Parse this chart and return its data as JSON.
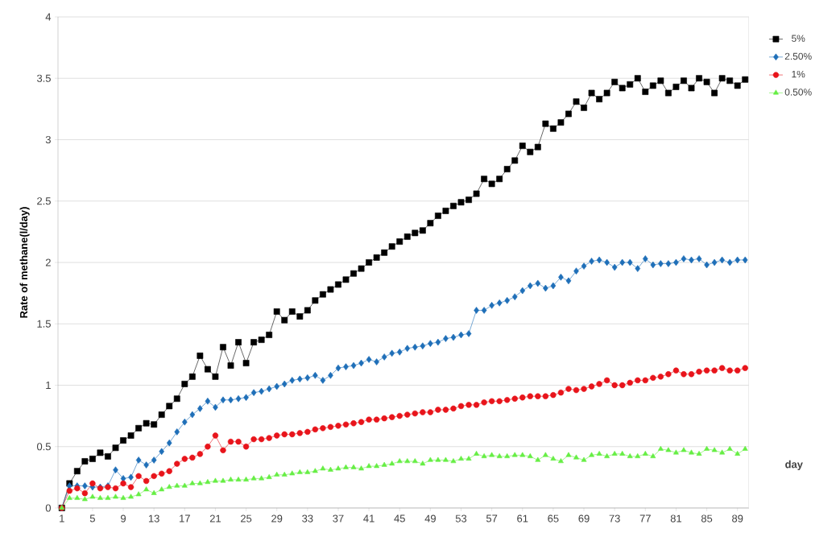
{
  "chart_data": {
    "type": "line",
    "ylabel": "Rate of methane(l/day)",
    "xlabel": "day",
    "categories": [
      "1",
      null,
      null,
      null,
      "5",
      null,
      null,
      null,
      "9",
      null,
      null,
      null,
      "13",
      null,
      null,
      null,
      "17",
      null,
      null,
      null,
      "21",
      null,
      null,
      null,
      "25",
      null,
      null,
      null,
      "29",
      null,
      null,
      null,
      "33",
      null,
      null,
      null,
      "37",
      null,
      null,
      null,
      "41",
      null,
      null,
      null,
      "45",
      null,
      null,
      null,
      "49",
      null,
      null,
      null,
      "53",
      null,
      null,
      null,
      "57",
      null,
      null,
      null,
      "61",
      null,
      null,
      null,
      "65",
      null,
      null,
      null,
      "69",
      null,
      null,
      null,
      "73",
      null,
      null,
      null,
      "77",
      null,
      null,
      null,
      "81",
      null,
      null,
      null,
      "85",
      null,
      null,
      null,
      "89",
      null
    ],
    "ylim": [
      0,
      4
    ],
    "yticks": [
      0,
      0.5,
      1,
      1.5,
      2,
      2.5,
      3,
      3.5,
      4
    ],
    "grid": "y",
    "legend": "right",
    "line_style": "solid",
    "series": [
      {
        "name": "5%",
        "color": "#000000",
        "marker": "square",
        "values": [
          0,
          0.2,
          0.3,
          0.38,
          0.4,
          0.45,
          0.42,
          0.49,
          0.55,
          0.59,
          0.65,
          0.69,
          0.68,
          0.76,
          0.83,
          0.89,
          1.01,
          1.07,
          1.24,
          1.13,
          1.07,
          1.31,
          1.16,
          1.35,
          1.18,
          1.35,
          1.37,
          1.41,
          1.6,
          1.53,
          1.6,
          1.56,
          1.61,
          1.69,
          1.74,
          1.78,
          1.82,
          1.86,
          1.91,
          1.95,
          2.0,
          2.04,
          2.08,
          2.13,
          2.17,
          2.21,
          2.24,
          2.26,
          2.32,
          2.38,
          2.42,
          2.46,
          2.49,
          2.51,
          2.56,
          2.68,
          2.64,
          2.68,
          2.76,
          2.83,
          2.95,
          2.9,
          2.94,
          3.13,
          3.09,
          3.14,
          3.21,
          3.31,
          3.26,
          3.38,
          3.33,
          3.38,
          3.47,
          3.42,
          3.45,
          3.5,
          3.39,
          3.44,
          3.48,
          3.38,
          3.43,
          3.48,
          3.42,
          3.5,
          3.47,
          3.38,
          3.5,
          3.48,
          3.44,
          3.49
        ]
      },
      {
        "name": "2.50%",
        "color": "#1f6fb8",
        "marker": "diamond",
        "values": [
          0,
          0.18,
          0.18,
          0.18,
          0.17,
          0.17,
          0.18,
          0.31,
          0.24,
          0.25,
          0.39,
          0.35,
          0.39,
          0.46,
          0.53,
          0.62,
          0.7,
          0.76,
          0.81,
          0.87,
          0.82,
          0.88,
          0.88,
          0.89,
          0.9,
          0.94,
          0.95,
          0.97,
          0.99,
          1.01,
          1.04,
          1.05,
          1.06,
          1.08,
          1.04,
          1.08,
          1.14,
          1.15,
          1.16,
          1.18,
          1.21,
          1.19,
          1.23,
          1.26,
          1.27,
          1.3,
          1.31,
          1.32,
          1.34,
          1.35,
          1.38,
          1.39,
          1.41,
          1.42,
          1.61,
          1.61,
          1.65,
          1.67,
          1.69,
          1.72,
          1.77,
          1.81,
          1.83,
          1.79,
          1.81,
          1.88,
          1.85,
          1.93,
          1.97,
          2.01,
          2.02,
          2.0,
          1.96,
          2.0,
          2.0,
          1.95,
          2.03,
          1.98,
          1.99,
          1.99,
          2.0,
          2.03,
          2.02,
          2.03,
          1.98,
          2.0,
          2.02,
          2.0,
          2.02,
          2.02
        ]
      },
      {
        "name": "1%",
        "color": "#e8141b",
        "marker": "circle",
        "values": [
          0,
          0.14,
          0.16,
          0.12,
          0.2,
          0.16,
          0.17,
          0.16,
          0.2,
          0.17,
          0.26,
          0.22,
          0.26,
          0.28,
          0.3,
          0.36,
          0.4,
          0.41,
          0.44,
          0.5,
          0.59,
          0.47,
          0.54,
          0.54,
          0.5,
          0.56,
          0.56,
          0.57,
          0.59,
          0.6,
          0.6,
          0.61,
          0.62,
          0.64,
          0.65,
          0.66,
          0.67,
          0.68,
          0.69,
          0.7,
          0.72,
          0.72,
          0.73,
          0.74,
          0.75,
          0.76,
          0.77,
          0.78,
          0.78,
          0.8,
          0.8,
          0.81,
          0.83,
          0.84,
          0.84,
          0.86,
          0.87,
          0.87,
          0.88,
          0.89,
          0.9,
          0.91,
          0.91,
          0.91,
          0.92,
          0.94,
          0.97,
          0.96,
          0.97,
          0.99,
          1.01,
          1.04,
          1.0,
          1.0,
          1.02,
          1.04,
          1.04,
          1.06,
          1.07,
          1.09,
          1.12,
          1.09,
          1.09,
          1.11,
          1.12,
          1.12,
          1.14,
          1.12,
          1.12,
          1.14
        ]
      },
      {
        "name": "0.50%",
        "color": "#66ee44",
        "marker": "triangle",
        "values": [
          0,
          0.08,
          0.08,
          0.07,
          0.09,
          0.08,
          0.08,
          0.09,
          0.08,
          0.09,
          0.11,
          0.15,
          0.12,
          0.15,
          0.17,
          0.18,
          0.18,
          0.2,
          0.2,
          0.21,
          0.22,
          0.22,
          0.23,
          0.23,
          0.23,
          0.24,
          0.24,
          0.25,
          0.27,
          0.27,
          0.28,
          0.29,
          0.29,
          0.3,
          0.32,
          0.31,
          0.32,
          0.33,
          0.33,
          0.32,
          0.34,
          0.34,
          0.35,
          0.36,
          0.38,
          0.38,
          0.38,
          0.36,
          0.39,
          0.39,
          0.39,
          0.38,
          0.4,
          0.4,
          0.44,
          0.42,
          0.43,
          0.42,
          0.42,
          0.43,
          0.43,
          0.42,
          0.39,
          0.43,
          0.4,
          0.38,
          0.43,
          0.41,
          0.39,
          0.43,
          0.44,
          0.42,
          0.44,
          0.44,
          0.42,
          0.42,
          0.44,
          0.42,
          0.48,
          0.47,
          0.45,
          0.47,
          0.45,
          0.44,
          0.48,
          0.47,
          0.45,
          0.48,
          0.44,
          0.48
        ]
      }
    ]
  }
}
